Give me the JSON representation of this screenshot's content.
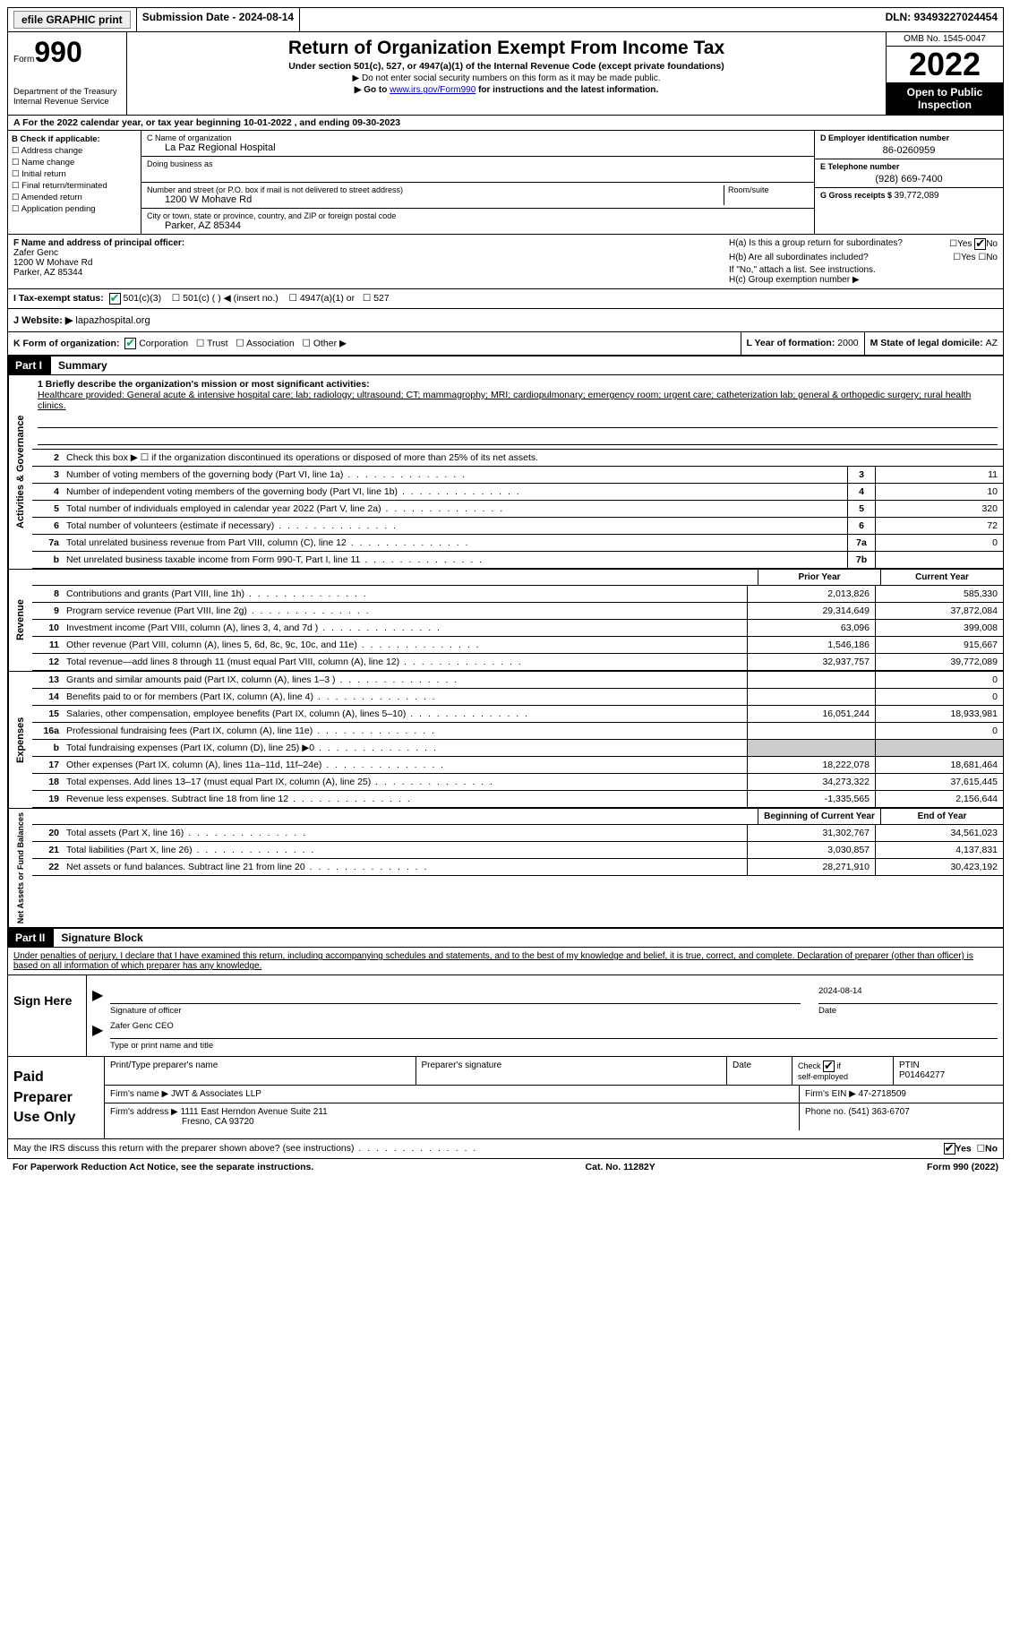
{
  "top": {
    "efile": "efile GRAPHIC print",
    "submission_lbl": "Submission Date - ",
    "submission_date": "2024-08-14",
    "dln_lbl": "DLN: ",
    "dln": "93493227024454"
  },
  "header": {
    "form_prefix": "Form",
    "form_num": "990",
    "dept": "Department of the Treasury Internal Revenue Service",
    "title": "Return of Organization Exempt From Income Tax",
    "subtitle": "Under section 501(c), 527, or 4947(a)(1) of the Internal Revenue Code (except private foundations)",
    "note1": "▶ Do not enter social security numbers on this form as it may be made public.",
    "note2_pre": "▶ Go to ",
    "note2_link": "www.irs.gov/Form990",
    "note2_post": " for instructions and the latest information.",
    "omb": "OMB No. 1545-0047",
    "year": "2022",
    "inspect": "Open to Public Inspection"
  },
  "row_a": "A For the 2022 calendar year, or tax year beginning 10-01-2022    , and ending 09-30-2023",
  "col_b": {
    "title": "B Check if applicable:",
    "items": [
      "Address change",
      "Name change",
      "Initial return",
      "Final return/terminated",
      "Amended return",
      "Application pending"
    ]
  },
  "col_c": {
    "name_lbl": "C Name of organization",
    "name": "La Paz Regional Hospital",
    "dba_lbl": "Doing business as",
    "addr_lbl": "Number and street (or P.O. box if mail is not delivered to street address)",
    "room_lbl": "Room/suite",
    "addr": "1200 W Mohave Rd",
    "city_lbl": "City or town, state or province, country, and ZIP or foreign postal code",
    "city": "Parker, AZ  85344"
  },
  "col_d": {
    "ein_lbl": "D Employer identification number",
    "ein": "86-0260959",
    "tel_lbl": "E Telephone number",
    "tel": "(928) 669-7400",
    "gross_lbl": "G Gross receipts $ ",
    "gross": "39,772,089"
  },
  "row_f": {
    "lbl": "F  Name and address of principal officer:",
    "name": "Zafer Genc",
    "addr1": "1200 W Mohave Rd",
    "addr2": "Parker, AZ  85344"
  },
  "row_h": {
    "ha": "H(a)  Is this a group return for subordinates?",
    "hb": "H(b)  Are all subordinates included?",
    "hb_note": "If \"No,\" attach a list. See instructions.",
    "hc": "H(c)  Group exemption number ▶"
  },
  "row_i": {
    "lbl": "I    Tax-exempt status:",
    "opts": [
      "501(c)(3)",
      "501(c) (  ) ◀ (insert no.)",
      "4947(a)(1) or",
      "527"
    ]
  },
  "row_j": {
    "lbl": "J    Website: ▶  ",
    "val": "lapazhospital.org"
  },
  "row_k": {
    "k_lbl": "K Form of organization:",
    "k_opts": [
      "Corporation",
      "Trust",
      "Association",
      "Other ▶"
    ],
    "l_lbl": "L Year of formation: ",
    "l_val": "2000",
    "m_lbl": "M State of legal domicile: ",
    "m_val": "AZ"
  },
  "part1": {
    "label": "Part I",
    "title": "Summary"
  },
  "mission": {
    "lbl": "1   Briefly describe the organization's mission or most significant activities:",
    "text": "Healthcare provided: General acute & intensive hospital care; lab; radiology; ultrasound; CT; mammagrophy; MRI; cardiopulmonary; emergency room; urgent care; catheterization lab; general & orthopedic surgery; rural health clinics."
  },
  "lines_ag": [
    {
      "n": "2",
      "desc": "Check this box ▶ ☐  if the organization discontinued its operations or disposed of more than 25% of its net assets."
    },
    {
      "n": "3",
      "desc": "Number of voting members of the governing body (Part VI, line 1a)",
      "box": "3",
      "val": "11"
    },
    {
      "n": "4",
      "desc": "Number of independent voting members of the governing body (Part VI, line 1b)",
      "box": "4",
      "val": "10"
    },
    {
      "n": "5",
      "desc": "Total number of individuals employed in calendar year 2022 (Part V, line 2a)",
      "box": "5",
      "val": "320"
    },
    {
      "n": "6",
      "desc": "Total number of volunteers (estimate if necessary)",
      "box": "6",
      "val": "72"
    },
    {
      "n": "7a",
      "desc": "Total unrelated business revenue from Part VIII, column (C), line 12",
      "box": "7a",
      "val": "0"
    },
    {
      "n": "b",
      "desc": "Net unrelated business taxable income from Form 990-T, Part I, line 11",
      "box": "7b",
      "val": ""
    }
  ],
  "col_headers": {
    "prior": "Prior Year",
    "current": "Current Year"
  },
  "revenue": [
    {
      "n": "8",
      "desc": "Contributions and grants (Part VIII, line 1h)",
      "prior": "2,013,826",
      "curr": "585,330"
    },
    {
      "n": "9",
      "desc": "Program service revenue (Part VIII, line 2g)",
      "prior": "29,314,649",
      "curr": "37,872,084"
    },
    {
      "n": "10",
      "desc": "Investment income (Part VIII, column (A), lines 3, 4, and 7d )",
      "prior": "63,096",
      "curr": "399,008"
    },
    {
      "n": "11",
      "desc": "Other revenue (Part VIII, column (A), lines 5, 6d, 8c, 9c, 10c, and 11e)",
      "prior": "1,546,186",
      "curr": "915,667"
    },
    {
      "n": "12",
      "desc": "Total revenue—add lines 8 through 11 (must equal Part VIII, column (A), line 12)",
      "prior": "32,937,757",
      "curr": "39,772,089"
    }
  ],
  "expenses": [
    {
      "n": "13",
      "desc": "Grants and similar amounts paid (Part IX, column (A), lines 1–3 )",
      "prior": "",
      "curr": "0"
    },
    {
      "n": "14",
      "desc": "Benefits paid to or for members (Part IX, column (A), line 4)",
      "prior": "",
      "curr": "0"
    },
    {
      "n": "15",
      "desc": "Salaries, other compensation, employee benefits (Part IX, column (A), lines 5–10)",
      "prior": "16,051,244",
      "curr": "18,933,981"
    },
    {
      "n": "16a",
      "desc": "Professional fundraising fees (Part IX, column (A), line 11e)",
      "prior": "",
      "curr": "0"
    },
    {
      "n": "b",
      "desc": "Total fundraising expenses (Part IX, column (D), line 25) ▶0",
      "prior": "shaded",
      "curr": "shaded"
    },
    {
      "n": "17",
      "desc": "Other expenses (Part IX, column (A), lines 11a–11d, 11f–24e)",
      "prior": "18,222,078",
      "curr": "18,681,464"
    },
    {
      "n": "18",
      "desc": "Total expenses. Add lines 13–17 (must equal Part IX, column (A), line 25)",
      "prior": "34,273,322",
      "curr": "37,615,445"
    },
    {
      "n": "19",
      "desc": "Revenue less expenses. Subtract line 18 from line 12",
      "prior": "-1,335,565",
      "curr": "2,156,644"
    }
  ],
  "balance_headers": {
    "begin": "Beginning of Current Year",
    "end": "End of Year"
  },
  "balances": [
    {
      "n": "20",
      "desc": "Total assets (Part X, line 16)",
      "prior": "31,302,767",
      "curr": "34,561,023"
    },
    {
      "n": "21",
      "desc": "Total liabilities (Part X, line 26)",
      "prior": "3,030,857",
      "curr": "4,137,831"
    },
    {
      "n": "22",
      "desc": "Net assets or fund balances. Subtract line 21 from line 20",
      "prior": "28,271,910",
      "curr": "30,423,192"
    }
  ],
  "part2": {
    "label": "Part II",
    "title": "Signature Block"
  },
  "sig_declare": "Under penalties of perjury, I declare that I have examined this return, including accompanying schedules and statements, and to the best of my knowledge and belief, it is true, correct, and complete. Declaration of preparer (other than officer) is based on all information of which preparer has any knowledge.",
  "sign": {
    "label": "Sign Here",
    "date": "2024-08-14",
    "sig_lbl": "Signature of officer",
    "date_lbl": "Date",
    "name": "Zafer Genc CEO",
    "name_lbl": "Type or print name and title"
  },
  "prep": {
    "label": "Paid Preparer Use Only",
    "r1": {
      "c1": "Print/Type preparer's name",
      "c2": "Preparer's signature",
      "c3": "Date",
      "c4_lbl": "Check         if self-employed",
      "c5_lbl": "PTIN",
      "c5_val": "P01464277"
    },
    "r2": {
      "lbl": "Firm's name      ▶ ",
      "val": "JWT & Associates LLP",
      "ein_lbl": "Firm's EIN ▶ ",
      "ein": "47-2718509"
    },
    "r3": {
      "lbl": "Firm's address ▶ ",
      "val1": "1111 East Herndon Avenue Suite 211",
      "val2": "Fresno, CA  93720",
      "ph_lbl": "Phone no. ",
      "ph": "(541) 363-6707"
    }
  },
  "discuss": "May the IRS discuss this return with the preparer shown above? (see instructions)",
  "footer": {
    "left": "For Paperwork Reduction Act Notice, see the separate instructions.",
    "mid": "Cat. No. 11282Y",
    "right": "Form 990 (2022)"
  },
  "yes": "Yes",
  "no": "No"
}
